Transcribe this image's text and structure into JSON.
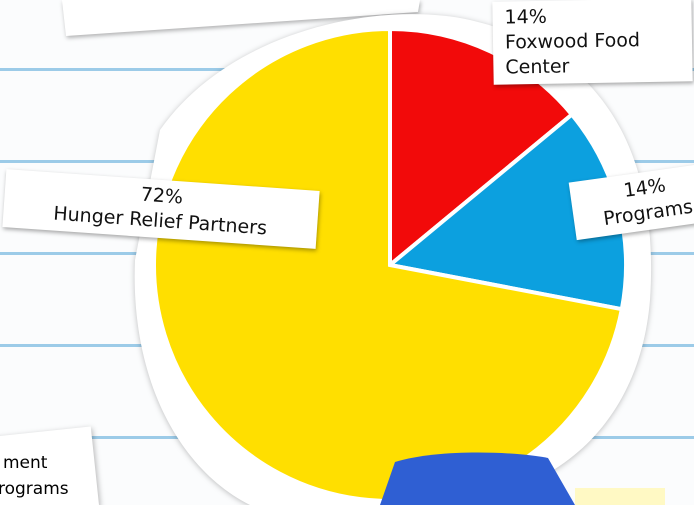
{
  "chart_data": {
    "type": "pie",
    "categories": [
      "Foxwood Food Center",
      "Programs",
      "Hunger Relief Partners"
    ],
    "values": [
      14,
      14,
      72
    ],
    "value_labels": [
      "14%",
      "14%",
      "72%"
    ],
    "colors": [
      "#f20a0a",
      "#0ca0df",
      "#ffdf00"
    ],
    "annotations": [
      "ment",
      "rograms"
    ]
  }
}
